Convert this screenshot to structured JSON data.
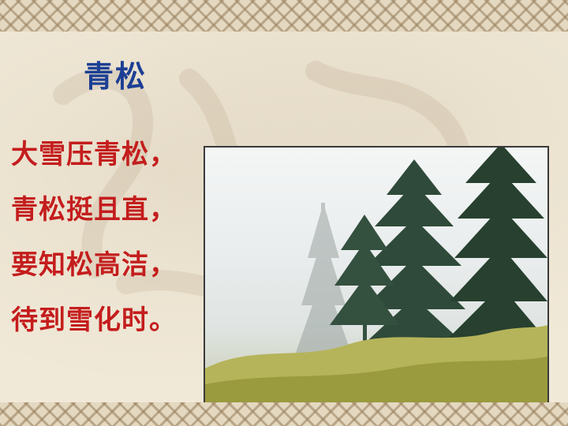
{
  "slide": {
    "title": "青松",
    "poem_lines": [
      "大雪压青松，",
      "青松挺且直，",
      "要知松高洁，",
      "待到雪化时。"
    ]
  },
  "colors": {
    "title": "#1c3f94",
    "poem": "#c41d1d",
    "background": "#f1e9d8",
    "border_pattern": "#967d5a"
  },
  "image": {
    "subject": "pine-trees-in-mist-photo"
  }
}
